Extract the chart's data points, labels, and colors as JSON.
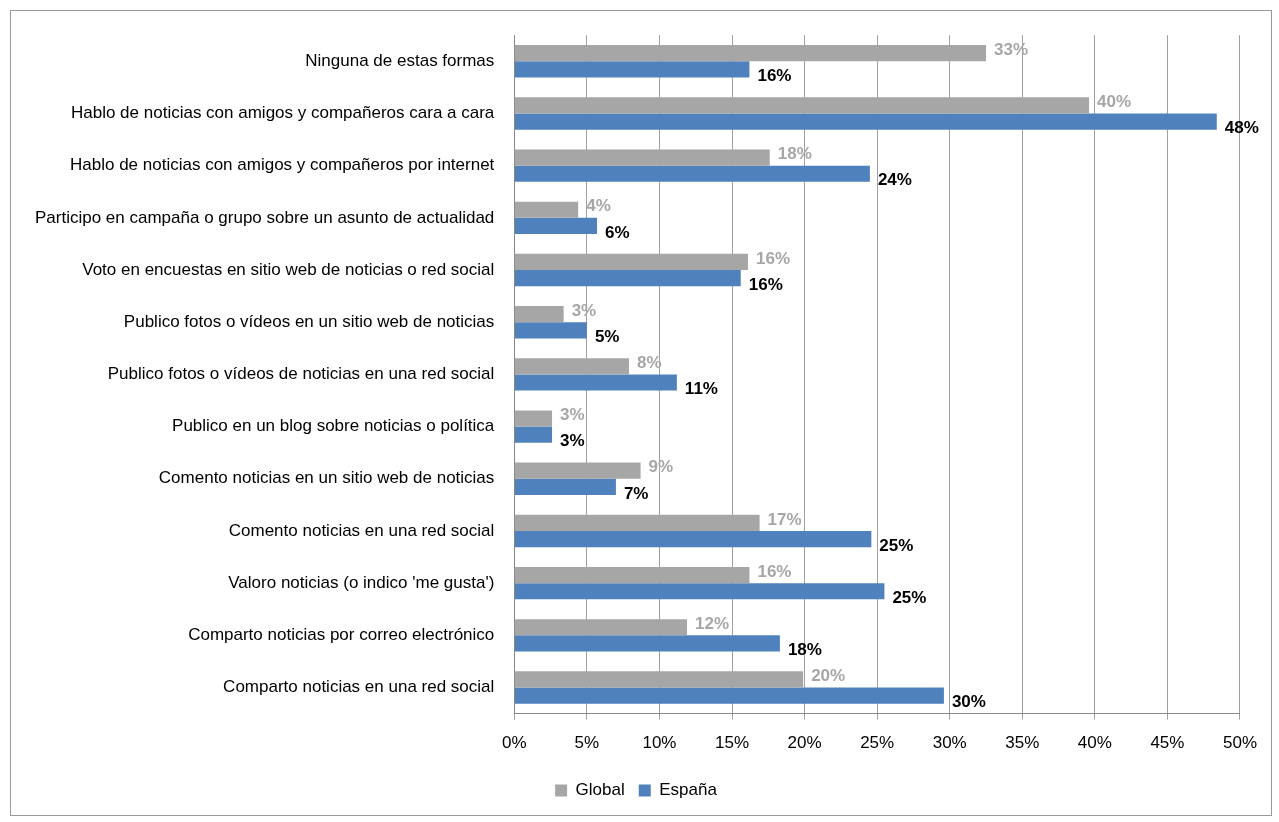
{
  "chart_data": {
    "type": "bar",
    "orientation": "horizontal",
    "categories": [
      "Ninguna de estas formas",
      "Hablo de noticias con amigos y compañeros cara a cara",
      "Hablo de noticias con amigos y compañeros por internet",
      "Participo en campaña o grupo sobre un asunto de actualidad",
      "Voto en encuestas en sitio web de noticias o red social",
      "Publico fotos o vídeos en un sitio web de noticias",
      "Publico fotos o vídeos de noticias en una red social",
      "Publico en un blog sobre noticias o política",
      "Comento noticias en un sitio web de noticias",
      "Comento noticias en una red social",
      "Valoro noticias (o indico 'me gusta')",
      "Comparto noticias por correo electrónico",
      "Comparto noticias en una red social"
    ],
    "series": [
      {
        "name": "Global",
        "color": "#a6a6a6",
        "values": [
          32.5,
          39.6,
          17.6,
          4.4,
          16.1,
          3.4,
          7.9,
          2.6,
          8.7,
          16.9,
          16.2,
          11.9,
          19.9
        ],
        "value_labels": [
          "33%",
          "40%",
          "18%",
          "4%",
          "16%",
          "3%",
          "8%",
          "3%",
          "9%",
          "17%",
          "16%",
          "12%",
          "20%"
        ]
      },
      {
        "name": "España",
        "color": "#4f81bd",
        "values": [
          16.2,
          48.4,
          24.5,
          5.7,
          15.6,
          5.0,
          11.2,
          2.6,
          7.0,
          24.6,
          25.5,
          18.3,
          29.6
        ],
        "value_labels": [
          "16%",
          "48%",
          "24%",
          "6%",
          "16%",
          "5%",
          "11%",
          "3%",
          "7%",
          "25%",
          "25%",
          "18%",
          "30%"
        ]
      }
    ],
    "xlim": [
      0,
      50
    ],
    "xticks": [
      {
        "value": 0,
        "label": "0%"
      },
      {
        "value": 5,
        "label": "5%"
      },
      {
        "value": 10,
        "label": "10%"
      },
      {
        "value": 15,
        "label": "15%"
      },
      {
        "value": 20,
        "label": "20%"
      },
      {
        "value": 25,
        "label": "25%"
      },
      {
        "value": 30,
        "label": "30%"
      },
      {
        "value": 35,
        "label": "35%"
      },
      {
        "value": 40,
        "label": "40%"
      },
      {
        "value": 45,
        "label": "45%"
      },
      {
        "value": 50,
        "label": "50%"
      }
    ],
    "grid": "x",
    "legend": "bottom"
  }
}
